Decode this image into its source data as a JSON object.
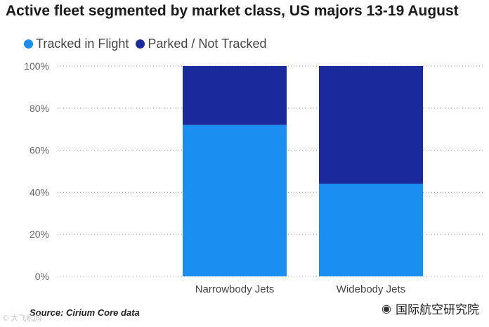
{
  "chart_data": {
    "type": "bar",
    "stacked": true,
    "title": "Active fleet segmented by market class, US majors 13-19 August",
    "categories": [
      "Narrowbody Jets",
      "Widebody Jets"
    ],
    "series": [
      {
        "name": "Tracked in Flight",
        "values": [
          72,
          44
        ],
        "color": "#1b8ef2"
      },
      {
        "name": "Parked / Not Tracked",
        "values": [
          28,
          56
        ],
        "color": "#1a2a9c"
      }
    ],
    "ylim": [
      0,
      100
    ],
    "yticks": [
      "0%",
      "20%",
      "40%",
      "60%",
      "80%",
      "100%"
    ],
    "grid": true,
    "legend_position": "top-left"
  },
  "source": "Source: Cirium Core data",
  "watermark": {
    "left": "© 大飞机网",
    "right": "国际航空研究院",
    "right_icon": "wechat-icon"
  }
}
